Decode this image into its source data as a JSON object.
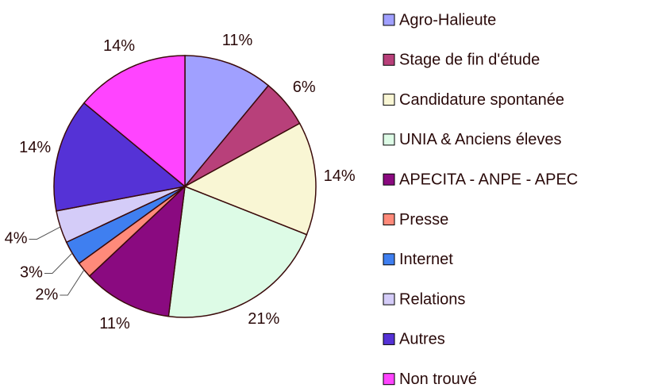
{
  "chart_data": {
    "type": "pie",
    "categories": [
      "Agro-Halieute",
      "Stage de fin d'étude",
      "Candidature spontanée",
      "UNIA & Anciens éleves",
      "APECITA - ANPE - APEC",
      "Presse",
      "Internet",
      "Relations",
      "Autres",
      "Non trouvé"
    ],
    "values": [
      11,
      6,
      14,
      21,
      11,
      2,
      3,
      4,
      14,
      14
    ],
    "value_labels": [
      "11%",
      "6%",
      "14%",
      "21%",
      "11%",
      "2%",
      "3%",
      "4%",
      "14%",
      "14%"
    ],
    "colors": [
      "#a0a0ff",
      "#b8407a",
      "#f9f6d4",
      "#ddfbe6",
      "#8a0a80",
      "#ff8a7a",
      "#3f7ff0",
      "#d4ccf8",
      "#5532d6",
      "#ff44ff"
    ],
    "legend": "right"
  }
}
